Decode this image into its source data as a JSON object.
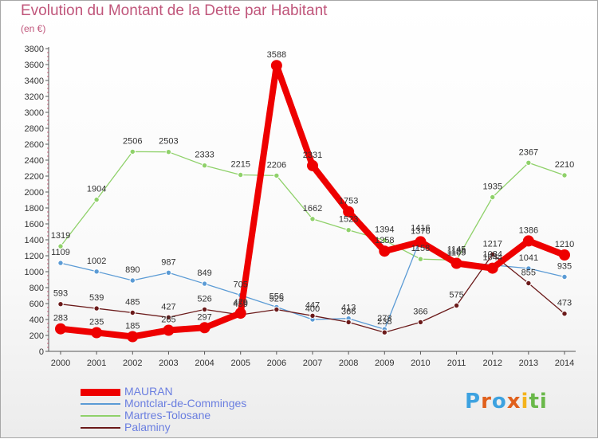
{
  "title": "Evolution du Montant de la Dette par Habitant",
  "unit": "(en €)",
  "brand": "Proxiti",
  "chart_data": {
    "type": "line",
    "x": [
      "2000",
      "2001",
      "2002",
      "2003",
      "2004",
      "2005",
      "2006",
      "2007",
      "2008",
      "2009",
      "2010",
      "2011",
      "2012",
      "2013",
      "2014"
    ],
    "ylim": [
      0,
      3800
    ],
    "yticks": [
      0,
      200,
      400,
      600,
      800,
      1000,
      1200,
      1400,
      1600,
      1800,
      2000,
      2200,
      2400,
      2600,
      2800,
      3000,
      3200,
      3400,
      3600,
      3800
    ],
    "grid": false,
    "legend_position": "bottom-left",
    "series": [
      {
        "name": "MAURAN",
        "color": "#ee0000",
        "values": [
          283,
          235,
          185,
          265,
          297,
          479,
          3588,
          2331,
          1753,
          1258,
          1376,
          1105,
          1044,
          1386,
          1210
        ],
        "labels": [
          "283",
          "235",
          "185",
          "265",
          "297",
          "479",
          "3588",
          "2331",
          "1753",
          "1258",
          "1376",
          "1105",
          "1044",
          "1386",
          "1210"
        ]
      },
      {
        "name": "Montclar-de-Comminges",
        "color": "#5b9bd5",
        "values": [
          1109,
          1002,
          890,
          987,
          849,
          705,
          556,
          400,
          413,
          278,
          1416,
          1126,
          1084,
          1041,
          935
        ],
        "labels": [
          "1109",
          "1002",
          "890",
          "987",
          "849",
          "705",
          "556",
          "400",
          "413",
          "278",
          "1416",
          "1126",
          "1084",
          "1041",
          "935"
        ]
      },
      {
        "name": "Martres-Tolosane",
        "color": "#8fd16a",
        "values": [
          1319,
          1904,
          2506,
          2503,
          2333,
          2215,
          2206,
          1662,
          1523,
          1394,
          1158,
          1145,
          1935,
          2367,
          2210
        ],
        "labels": [
          "1319",
          "1904",
          "2506",
          "2503",
          "2333",
          "2215",
          "2206",
          "1662",
          "1523",
          "1394",
          "1158",
          "1145",
          "1935",
          "2367",
          "2210"
        ]
      },
      {
        "name": "Palaminy",
        "color": "#6b1a1a",
        "values": [
          593,
          539,
          485,
          427,
          526,
          459,
          525,
          447,
          366,
          238,
          366,
          575,
          1217,
          855,
          473
        ],
        "labels": [
          "593",
          "539",
          "485",
          "427",
          "526",
          "459",
          "525",
          "447",
          "366",
          "238",
          "366",
          "575",
          "1217",
          "855",
          "473"
        ]
      }
    ]
  }
}
